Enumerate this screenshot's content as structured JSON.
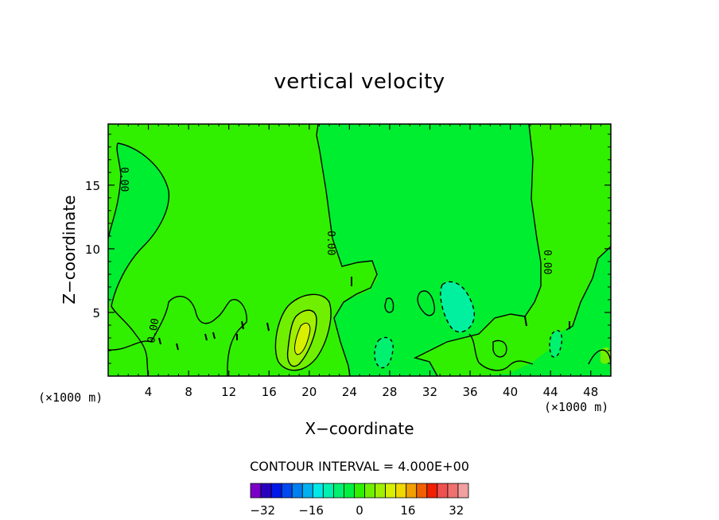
{
  "chart_data": {
    "type": "contour",
    "title": "vertical velocity",
    "xlabel": "X−coordinate",
    "ylabel": "Z−coordinate",
    "x_unit": "(×1000 m)",
    "x_unit_right": "(×1000 m)",
    "xlim": [
      0,
      50
    ],
    "ylim": [
      0,
      19.8
    ],
    "x_ticks": [
      "4",
      "8",
      "12",
      "16",
      "20",
      "24",
      "28",
      "32",
      "36",
      "40",
      "44",
      "48"
    ],
    "y_ticks": [
      "5",
      "10",
      "15"
    ],
    "contour_labels": [
      "0.00",
      "0.00",
      "0.00",
      "0.00",
      "0.00"
    ],
    "contour_interval_text": "CONTOUR INTERVAL = 4.000E+00",
    "contour_interval": 4.0,
    "colorbar": {
      "range": [
        -36,
        36
      ],
      "tick_labels": [
        "−32",
        "−16",
        "0",
        "16",
        "32"
      ],
      "colors": [
        "#7a00c8",
        "#2a00c0",
        "#0018e8",
        "#0048f0",
        "#0080f0",
        "#00b0f0",
        "#00e8e8",
        "#00f0b0",
        "#00f070",
        "#00f040",
        "#30f000",
        "#70f000",
        "#a0f000",
        "#d8f000",
        "#f0d800",
        "#f0a000",
        "#f06000",
        "#f02000",
        "#f05050",
        "#f07070",
        "#f0a0a0"
      ]
    },
    "grid": false
  }
}
